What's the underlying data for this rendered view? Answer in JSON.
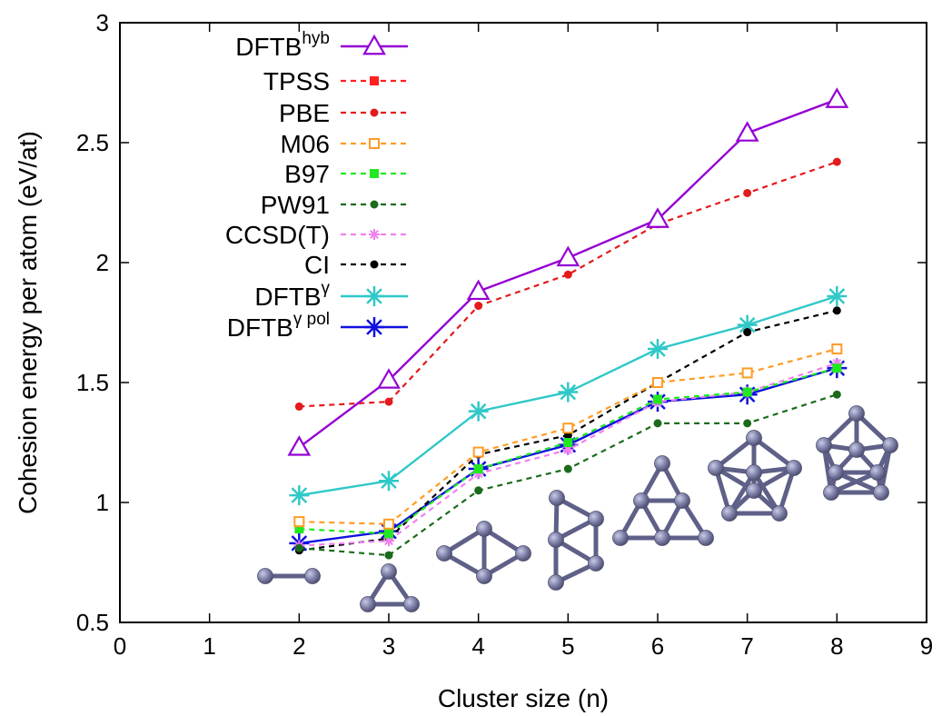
{
  "chart_data": {
    "type": "line",
    "title": "",
    "xlabel": "Cluster size (n)",
    "ylabel": "Cohesion energy per atom (eV/at)",
    "xlim": [
      0,
      9
    ],
    "ylim": [
      0.5,
      3
    ],
    "xticks": [
      "0",
      "1",
      "2",
      "3",
      "4",
      "5",
      "6",
      "7",
      "8",
      "9"
    ],
    "yticks": [
      "0.5",
      "1",
      "1.5",
      "2",
      "2.5",
      "3"
    ],
    "legend_position": "top-left",
    "grid": false,
    "series": [
      {
        "name": "DFTB",
        "sup": "hyb",
        "color": "#9400d3",
        "style": "solid",
        "marker": "open-triangle",
        "x": [
          2,
          3,
          4,
          5,
          6,
          7,
          8
        ],
        "y": [
          1.23,
          1.51,
          1.88,
          2.02,
          2.18,
          2.54,
          2.68
        ]
      },
      {
        "name": "TPSS",
        "color": "#ff2020",
        "style": "dashed",
        "marker": "filled-square",
        "x": [],
        "y": []
      },
      {
        "name": "PBE",
        "color": "#e41a1c",
        "style": "dashed",
        "marker": "filled-circle",
        "x": [
          2,
          3,
          4,
          5,
          6,
          7,
          8
        ],
        "y": [
          1.4,
          1.42,
          1.82,
          1.95,
          2.16,
          2.29,
          2.42
        ]
      },
      {
        "name": "M06",
        "color": "#ff9c24",
        "style": "dashed",
        "marker": "open-square",
        "x": [
          2,
          3,
          4,
          5,
          6,
          7,
          8
        ],
        "y": [
          0.92,
          0.91,
          1.21,
          1.31,
          1.5,
          1.54,
          1.64
        ]
      },
      {
        "name": "B97",
        "color": "#21e821",
        "style": "dashed",
        "marker": "filled-square",
        "x": [
          2,
          3,
          4,
          5,
          6,
          7,
          8
        ],
        "y": [
          0.89,
          0.87,
          1.14,
          1.25,
          1.43,
          1.46,
          1.56
        ]
      },
      {
        "name": "PW91",
        "color": "#1a6b1a",
        "style": "dashed",
        "marker": "filled-circle",
        "x": [
          2,
          3,
          4,
          5,
          6,
          7,
          8
        ],
        "y": [
          0.81,
          0.78,
          1.05,
          1.14,
          1.33,
          1.33,
          1.45
        ]
      },
      {
        "name": "CCSD(T)",
        "color": "#f080f0",
        "style": "dashed",
        "marker": "star",
        "x": [
          2,
          3,
          4,
          5,
          6,
          7,
          8
        ],
        "y": [
          0.82,
          0.84,
          1.12,
          1.22,
          1.42,
          1.46,
          1.58
        ]
      },
      {
        "name": "CI",
        "color": "#000000",
        "style": "dashed",
        "marker": "filled-circle",
        "x": [
          2,
          3,
          4,
          5,
          6,
          7,
          8
        ],
        "y": [
          0.8,
          0.85,
          1.2,
          1.28,
          1.5,
          1.71,
          1.8
        ]
      },
      {
        "name": "DFTB",
        "sup": "γ",
        "color": "#30c8c8",
        "style": "solid",
        "marker": "asterisk",
        "x": [
          2,
          3,
          4,
          5,
          6,
          7,
          8
        ],
        "y": [
          1.03,
          1.09,
          1.38,
          1.46,
          1.64,
          1.74,
          1.86
        ]
      },
      {
        "name": "DFTB",
        "sup": "γ pol",
        "color": "#1010e0",
        "style": "solid",
        "marker": "asterisk",
        "x": [
          2,
          3,
          4,
          5,
          6,
          7,
          8
        ],
        "y": [
          0.83,
          0.88,
          1.14,
          1.24,
          1.42,
          1.45,
          1.56
        ]
      }
    ],
    "cluster_structures": [
      "dimer",
      "triangle",
      "rhombus",
      "trapezoid",
      "triangular-6",
      "pentagonal-bipyramid",
      "bicapped-octahedron-8"
    ],
    "atom_color": "#7d7fa8"
  }
}
